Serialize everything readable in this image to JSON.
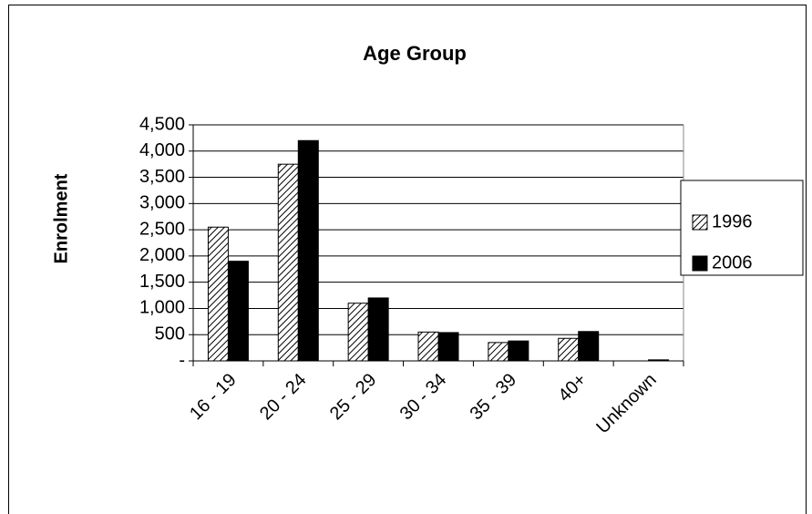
{
  "chart_data": {
    "type": "bar",
    "title": "Age Group",
    "y_label": "Enrolment",
    "categories": [
      "16 - 19",
      "20 - 24",
      "25 - 29",
      "30 - 34",
      "35 - 39",
      "40+",
      "Unknown"
    ],
    "series": [
      {
        "name": "1996",
        "color": "#000000",
        "pattern": "diagonal",
        "values": [
          2550,
          3750,
          1100,
          550,
          350,
          430,
          0
        ]
      },
      {
        "name": "2006",
        "color": "#000000",
        "pattern": "solid",
        "values": [
          1900,
          4200,
          1200,
          540,
          380,
          560,
          20
        ]
      }
    ],
    "ylim": [
      0,
      4500
    ],
    "yticks": [
      {
        "value": 0,
        "label": "-"
      },
      500,
      {
        "value": 1000,
        "label": "1,000"
      },
      {
        "value": 1500,
        "label": "1,500"
      },
      {
        "value": 2000,
        "label": "2,000"
      },
      {
        "value": 2500,
        "label": "2,500"
      },
      {
        "value": 3000,
        "label": "3,000"
      },
      {
        "value": 3500,
        "label": "3,500"
      },
      {
        "value": 4000,
        "label": "4,000"
      },
      {
        "value": 4500,
        "label": "4,500"
      }
    ],
    "grid": true,
    "legend": "right"
  }
}
